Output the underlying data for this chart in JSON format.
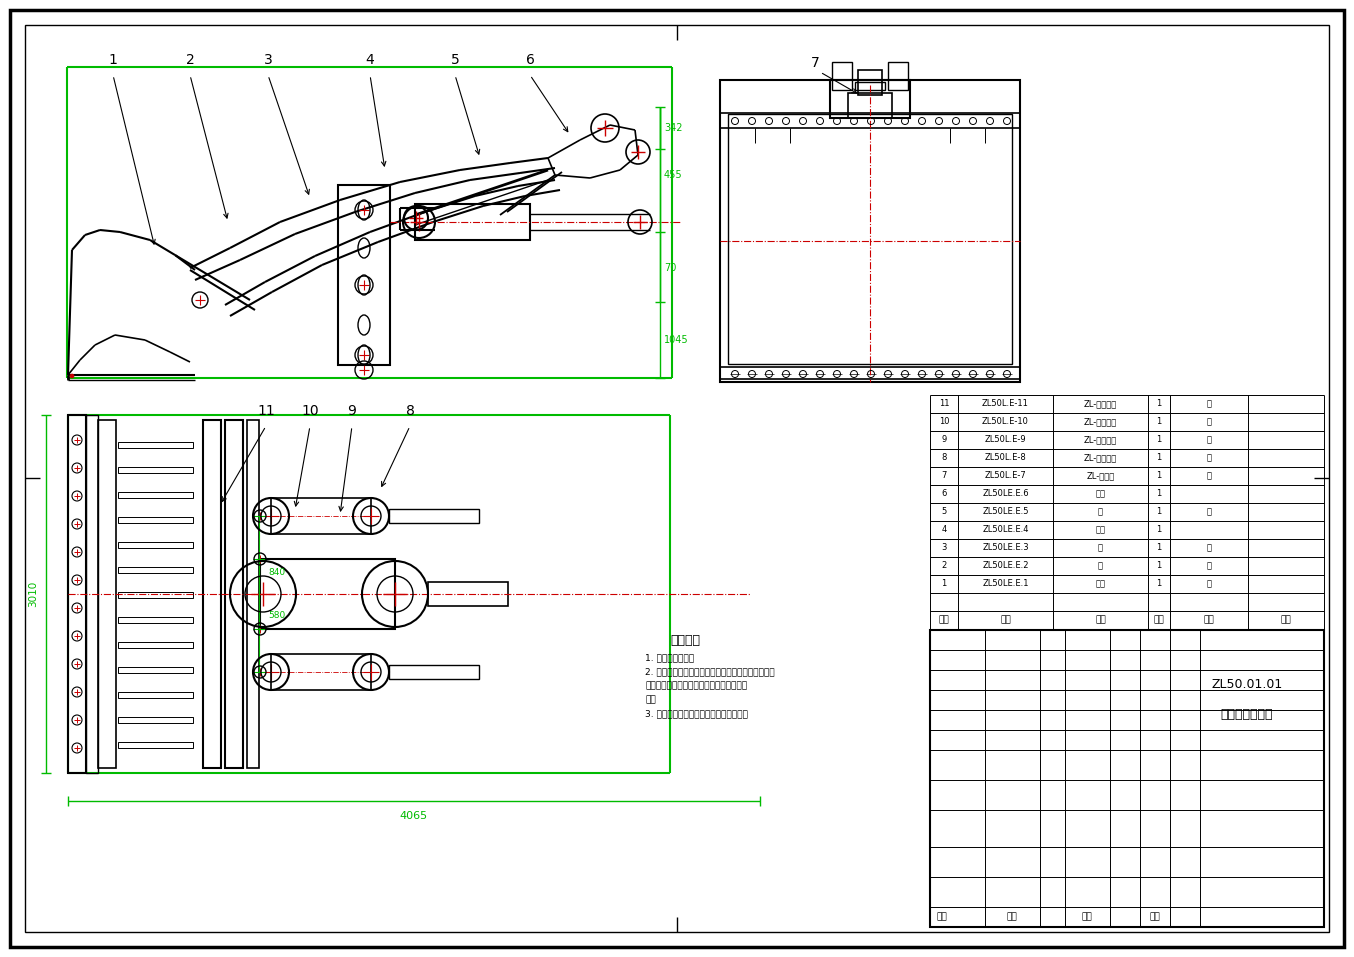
{
  "bg_color": "#ffffff",
  "line_color": "#000000",
  "green_color": "#00bb00",
  "red_color": "#cc0000",
  "drawing_title": "工作装置总成图",
  "drawing_number": "ZL50.01.01",
  "tech_req_title": "技术要求",
  "tech_req_lines": [
    "1. 去除毛刺飞边。",
    "2. 进入涂肆境件及进入涂肆境件（包括外购件、外入",
    "件），应按具体订购合同中合格证方面进行",
    "验。",
    "3. 组装后，测试流量及压力，均应符合。"
  ],
  "dim_342": "342",
  "dim_455": "455",
  "dim_70": "70",
  "dim_1045": "1045",
  "dim_3010": "3010",
  "dim_4065": "4065",
  "dim_840": "840",
  "dim_580": "580"
}
